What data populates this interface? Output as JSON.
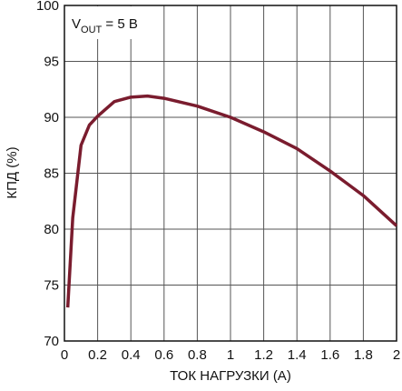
{
  "chart_data": {
    "type": "line",
    "annotation": {
      "main": "V",
      "sub": "OUT",
      "rest": " = 5 В"
    },
    "x_label": "ТОК НАГРУЗКИ (А)",
    "y_label": "КПД (%)",
    "x": [
      0.02,
      0.05,
      0.1,
      0.15,
      0.2,
      0.3,
      0.4,
      0.5,
      0.6,
      0.8,
      1.0,
      1.2,
      1.4,
      1.6,
      1.8,
      2.0
    ],
    "series": [
      {
        "color": "#7a1c2e",
        "values": [
          73,
          81,
          87.5,
          89.3,
          90.1,
          91.4,
          91.8,
          91.9,
          91.7,
          91.0,
          90.0,
          88.7,
          87.2,
          85.2,
          83.0,
          80.3
        ]
      }
    ],
    "xlim": [
      0,
      2
    ],
    "xticks": [
      0,
      0.2,
      0.4,
      0.6,
      0.8,
      1,
      1.2,
      1.4,
      1.6,
      1.8,
      2
    ],
    "ylim": [
      70,
      100
    ],
    "yticks": [
      70,
      75,
      80,
      85,
      90,
      95,
      100
    ],
    "grid": true
  }
}
